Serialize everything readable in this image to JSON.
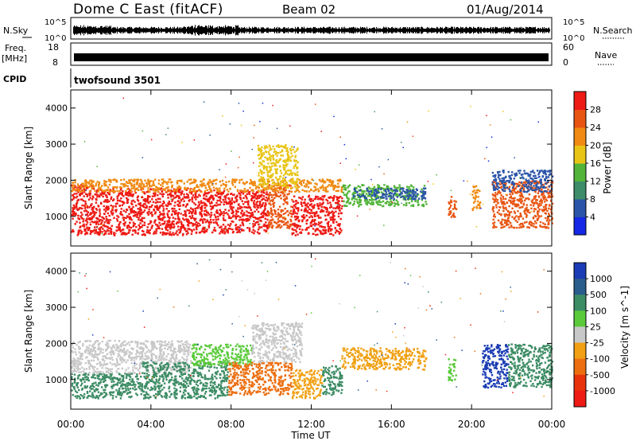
{
  "header": {
    "station": "Dome C East (fitACF)",
    "beam": "Beam 02",
    "date": "01/Aug/2014"
  },
  "sky_panel": {
    "left_label": "N.Sky",
    "left_ticks": [
      "10^5",
      "10^0"
    ],
    "right_ticks": [
      "10^5",
      "10^0"
    ],
    "right_label": "N.Search",
    "right_label_style": "dotted"
  },
  "freq_panel": {
    "label_line1": "Freq.",
    "label_line2": "[MHz]",
    "left_ticks": [
      "18",
      "8"
    ],
    "right_ticks": [
      "60",
      "0"
    ],
    "right_label": "Nave",
    "right_label_style": "dotted"
  },
  "cpid_panel": {
    "label": "CPID",
    "value": "twofsound 3501"
  },
  "x_axis": {
    "label": "Time UT",
    "range_hours": [
      0,
      24
    ],
    "ticks": [
      "00:00",
      "04:00",
      "08:00",
      "12:00",
      "16:00",
      "20:00",
      "00:00"
    ]
  },
  "chart_data": [
    {
      "type": "heatmap",
      "name": "power",
      "ylabel": "Slant Range [km]",
      "ylim": [
        180,
        4500
      ],
      "y_ticks": [
        "1000",
        "2000",
        "3000",
        "4000"
      ],
      "colorbar": {
        "label": "Power [dB]",
        "ticks": [
          "4",
          "8",
          "12",
          "16",
          "20",
          "24",
          "28"
        ],
        "colors": [
          "#1428e6",
          "#2a54a8",
          "#3d8c6a",
          "#52b438",
          "#e8c416",
          "#f08a12",
          "#e85512",
          "#ee1a14"
        ]
      },
      "regions": [
        {
          "t": [
            0.0,
            1.2
          ],
          "r": [
            500,
            1900
          ],
          "color": "#ee1a14"
        },
        {
          "t": [
            1.2,
            6.0
          ],
          "r": [
            500,
            1800
          ],
          "color": "#ee1a14"
        },
        {
          "t": [
            6.0,
            9.8
          ],
          "r": [
            550,
            1750
          ],
          "color": "#ee1a14"
        },
        {
          "t": [
            9.8,
            11.0
          ],
          "r": [
            700,
            1900
          ],
          "color": "#e85512"
        },
        {
          "t": [
            11.0,
            13.5
          ],
          "r": [
            500,
            1600
          ],
          "color": "#ee1a14"
        },
        {
          "t": [
            0.0,
            13.5
          ],
          "r": [
            1700,
            2050
          ],
          "color": "#f08a12"
        },
        {
          "t": [
            9.3,
            11.3
          ],
          "r": [
            1800,
            3000
          ],
          "color": "#e8c416"
        },
        {
          "t": [
            13.5,
            17.7
          ],
          "r": [
            1300,
            1900
          ],
          "color": "#52b438"
        },
        {
          "t": [
            14.0,
            17.7
          ],
          "r": [
            1500,
            1800
          ],
          "color": "#2a54a8"
        },
        {
          "t": [
            18.8,
            19.2
          ],
          "r": [
            1000,
            1600
          ],
          "color": "#e85512"
        },
        {
          "t": [
            20.0,
            20.4
          ],
          "r": [
            1200,
            1900
          ],
          "color": "#f08a12"
        },
        {
          "t": [
            21.0,
            24.0
          ],
          "r": [
            700,
            2000
          ],
          "color": "#e85512"
        },
        {
          "t": [
            21.0,
            24.0
          ],
          "r": [
            1700,
            2300
          ],
          "color": "#2a54a8"
        }
      ]
    },
    {
      "type": "heatmap",
      "name": "velocity",
      "ylabel": "Slant Range [km]",
      "ylim": [
        180,
        4500
      ],
      "y_ticks": [
        "1000",
        "2000",
        "3000",
        "4000"
      ],
      "colorbar": {
        "label": "Velocity [m s^-1]",
        "ticks": [
          "1000",
          "500",
          "100",
          "25",
          "-25",
          "-100",
          "-500",
          "-1000"
        ],
        "colors": [
          "#1a3cb4",
          "#2a5c8c",
          "#3c8c64",
          "#5aca3a",
          "#c8c8c8",
          "#f0a012",
          "#ec6e10",
          "#e8320c",
          "#ee1a14"
        ]
      },
      "regions": [
        {
          "t": [
            0.0,
            3.5
          ],
          "r": [
            500,
            1200
          ],
          "color": "#3c8c64"
        },
        {
          "t": [
            0.0,
            6.0
          ],
          "r": [
            1200,
            2100
          ],
          "color": "#c8c8c8"
        },
        {
          "t": [
            3.5,
            7.8
          ],
          "r": [
            500,
            1500
          ],
          "color": "#3c8c64"
        },
        {
          "t": [
            6.0,
            9.0
          ],
          "r": [
            1400,
            2000
          ],
          "color": "#5aca3a"
        },
        {
          "t": [
            7.8,
            11.0
          ],
          "r": [
            600,
            1500
          ],
          "color": "#ec6e10"
        },
        {
          "t": [
            9.0,
            11.5
          ],
          "r": [
            1500,
            2600
          ],
          "color": "#c8c8c8"
        },
        {
          "t": [
            11.0,
            12.5
          ],
          "r": [
            500,
            1300
          ],
          "color": "#f0a012"
        },
        {
          "t": [
            12.5,
            13.5
          ],
          "r": [
            600,
            1400
          ],
          "color": "#3c8c64"
        },
        {
          "t": [
            13.5,
            17.7
          ],
          "r": [
            1300,
            1900
          ],
          "color": "#f0a012"
        },
        {
          "t": [
            18.8,
            19.2
          ],
          "r": [
            1000,
            1600
          ],
          "color": "#5aca3a"
        },
        {
          "t": [
            20.5,
            21.8
          ],
          "r": [
            800,
            2000
          ],
          "color": "#1a3cb4"
        },
        {
          "t": [
            21.8,
            24.0
          ],
          "r": [
            800,
            2000
          ],
          "color": "#3c8c64"
        }
      ]
    }
  ]
}
